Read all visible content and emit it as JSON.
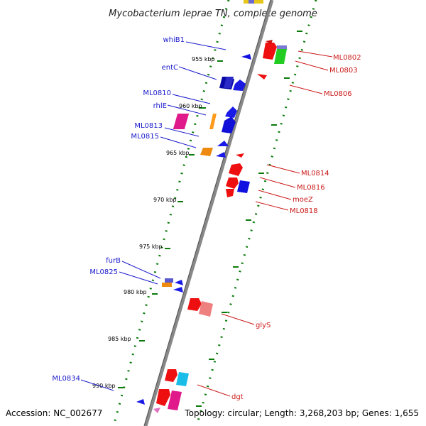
{
  "title": "Mycobacterium leprae TN, complete genome",
  "footer": {
    "accession": "Accession: NC_002677",
    "stats": "Topology: circular; Length: 3,268,203 bp; Genes: 1,655"
  },
  "colors": {
    "backbone": "#808080",
    "backbone_dark": "#404040",
    "tick_green": "#0a7a0a",
    "reverse_label": "#1a1acc",
    "forward_label": "#cc1a1a"
  },
  "kbp_ticks": [
    "955 kbp",
    "960 kbp",
    "965 kbp",
    "970 kbp",
    "975 kbp",
    "980 kbp",
    "985 kbp",
    "990 kbp"
  ],
  "reverse_genes": [
    {
      "name": "whiB1"
    },
    {
      "name": "entC"
    },
    {
      "name": "ML0810"
    },
    {
      "name": "rhlE"
    },
    {
      "name": "ML0813"
    },
    {
      "name": "ML0815"
    },
    {
      "name": "furB"
    },
    {
      "name": "ML0825"
    },
    {
      "name": "ML0834"
    }
  ],
  "forward_genes": [
    {
      "name": "ML0802"
    },
    {
      "name": "ML0803"
    },
    {
      "name": "ML0806"
    },
    {
      "name": "ML0814"
    },
    {
      "name": "ML0816"
    },
    {
      "name": "moeZ"
    },
    {
      "name": "ML0818"
    },
    {
      "name": "glyS"
    },
    {
      "name": "dgt"
    }
  ]
}
